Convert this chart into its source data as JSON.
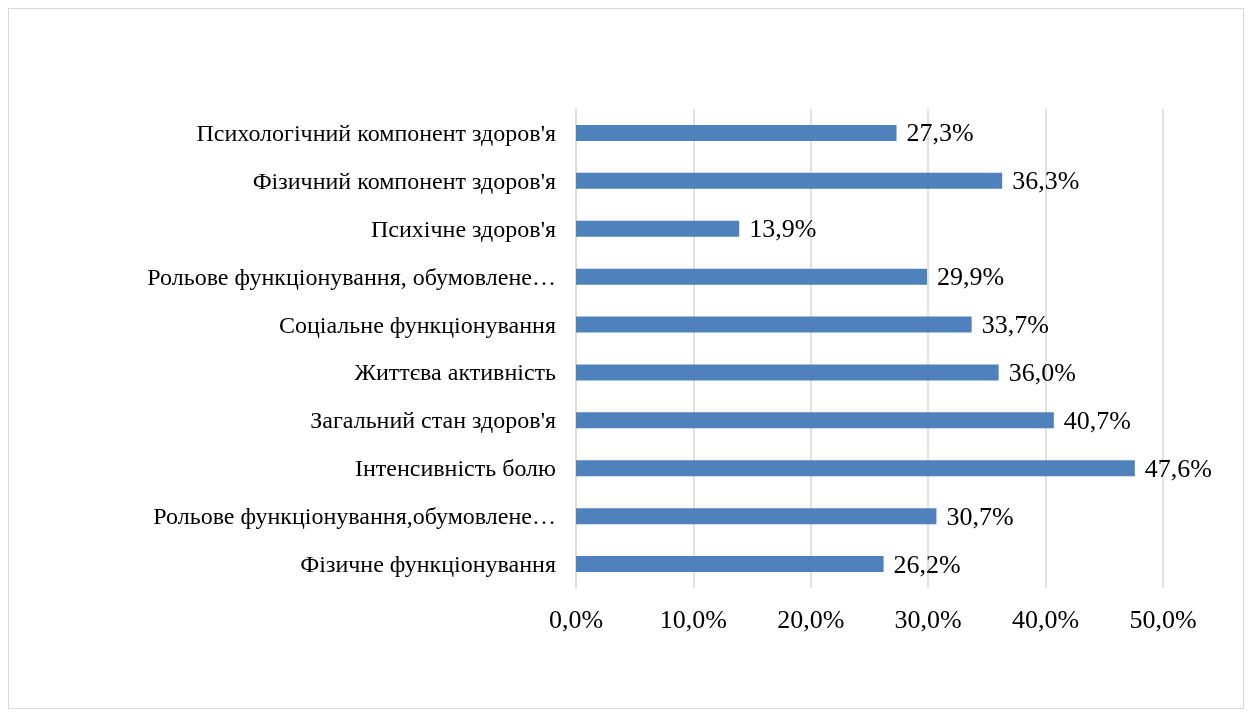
{
  "chart_data": {
    "type": "bar",
    "orientation": "horizontal",
    "categories": [
      "Психологічний компонент здоров'я",
      "Фізичний компонент здоров'я",
      "Психічне здоров'я",
      "Рольове функціонування, обумовлене…",
      "Соціальне функціонування",
      "Життєва активність",
      "Загальний стан здоров'я",
      "Інтенсивність болю",
      "Рольове функціонування,обумовлене…",
      "Фізичне функціонування"
    ],
    "values": [
      27.3,
      36.3,
      13.9,
      29.9,
      33.7,
      36.0,
      40.7,
      47.6,
      30.7,
      26.2
    ],
    "value_labels": [
      "27,3%",
      "36,3%",
      "13,9%",
      "29,9%",
      "33,7%",
      "36,0%",
      "40,7%",
      "47,6%",
      "30,7%",
      "26,2%"
    ],
    "color": "#4f81bd",
    "xlim": [
      0,
      50
    ],
    "xticks": [
      {
        "value": 0,
        "label": "0,0%"
      },
      {
        "value": 10,
        "label": "10,0%"
      },
      {
        "value": 20,
        "label": "20,0%"
      },
      {
        "value": 30,
        "label": "30,0%"
      },
      {
        "value": 40,
        "label": "40,0%"
      },
      {
        "value": 50,
        "label": "50,0%"
      }
    ],
    "grid": "x"
  }
}
